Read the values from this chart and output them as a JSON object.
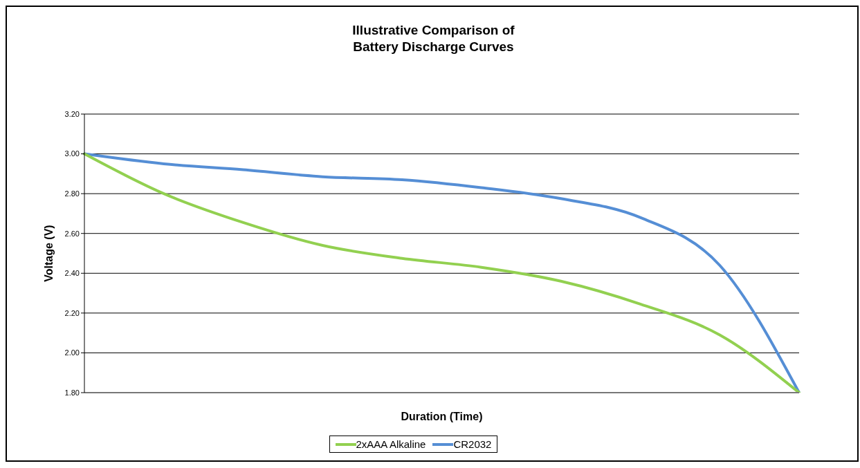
{
  "chart_data": {
    "type": "line",
    "title": "Illustrative Comparison of\nBattery Discharge Curves",
    "xlabel": "Duration (Time)",
    "ylabel": "Voltage (V)",
    "categories": [
      null,
      null,
      null,
      null,
      null,
      null,
      null,
      null,
      null,
      null
    ],
    "series": [
      {
        "name": "CR2032",
        "color": "#558ed5",
        "values": [
          3.0,
          2.95,
          2.92,
          2.885,
          2.87,
          2.83,
          2.775,
          2.68,
          2.44,
          1.8
        ]
      },
      {
        "name": "2xAAA Alkaline",
        "color": "#92d050",
        "values": [
          3.0,
          2.8,
          2.655,
          2.54,
          2.475,
          2.43,
          2.36,
          2.245,
          2.09,
          1.8
        ]
      }
    ],
    "ylim": [
      1.8,
      3.2
    ],
    "yticks": [
      {
        "value": 1.8,
        "label": "1.80"
      },
      {
        "value": 2.0,
        "label": "2.00"
      },
      {
        "value": 2.2,
        "label": "2.20"
      },
      {
        "value": 2.4,
        "label": "2.40"
      },
      {
        "value": 2.6,
        "label": "2.60"
      },
      {
        "value": 2.8,
        "label": "2.80"
      },
      {
        "value": 3.0,
        "label": "3.00"
      },
      {
        "value": 3.2,
        "label": "3.20"
      }
    ],
    "grid": "y",
    "legend": "bottom",
    "marker": "none",
    "line_style": "solid",
    "tick_labels": "y"
  }
}
